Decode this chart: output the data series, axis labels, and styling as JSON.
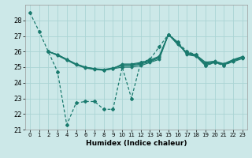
{
  "xlabel": "Humidex (Indice chaleur)",
  "background_color": "#cce8e8",
  "grid_color": "#aad4d4",
  "line_color": "#1a7a6e",
  "xlim": [
    -0.5,
    23.5
  ],
  "ylim": [
    21,
    29
  ],
  "yticks": [
    21,
    22,
    23,
    24,
    25,
    26,
    27,
    28
  ],
  "xticks": [
    0,
    1,
    2,
    3,
    4,
    5,
    6,
    7,
    8,
    9,
    10,
    11,
    12,
    13,
    14,
    15,
    16,
    17,
    18,
    19,
    20,
    21,
    22,
    23
  ],
  "line_jagged": [
    28.5,
    27.3,
    26.0,
    24.7,
    21.3,
    22.7,
    22.8,
    22.8,
    22.3,
    22.3,
    25.0,
    23.0,
    25.3,
    25.5,
    26.3,
    27.1,
    26.6,
    26.0,
    25.8,
    25.1,
    25.3,
    25.1,
    25.4,
    25.6
  ],
  "smooth_anchors_x": [
    2,
    3,
    4,
    5,
    6,
    7,
    8,
    9,
    10,
    11,
    12,
    13,
    14,
    15,
    16,
    17,
    18,
    19,
    20,
    21,
    22,
    23
  ],
  "smooth_lines": [
    [
      26.0,
      25.8,
      25.5,
      25.2,
      25.0,
      24.9,
      24.8,
      24.9,
      25.0,
      25.0,
      25.1,
      25.3,
      25.5,
      27.1,
      26.6,
      25.8,
      25.7,
      25.1,
      25.3,
      25.15,
      25.35,
      25.55
    ],
    [
      26.0,
      25.8,
      25.5,
      25.2,
      25.0,
      24.9,
      24.85,
      24.95,
      25.1,
      25.1,
      25.2,
      25.35,
      25.6,
      27.1,
      26.55,
      25.85,
      25.72,
      25.18,
      25.32,
      25.18,
      25.42,
      25.62
    ],
    [
      26.0,
      25.78,
      25.48,
      25.18,
      24.98,
      24.88,
      24.82,
      24.92,
      25.15,
      25.15,
      25.25,
      25.4,
      25.65,
      27.1,
      26.5,
      25.9,
      25.75,
      25.25,
      25.35,
      25.2,
      25.45,
      25.65
    ],
    [
      26.0,
      25.75,
      25.45,
      25.15,
      24.95,
      24.85,
      24.8,
      24.9,
      25.2,
      25.2,
      25.3,
      25.45,
      25.7,
      27.1,
      26.45,
      25.95,
      25.78,
      25.32,
      25.38,
      25.22,
      25.48,
      25.68
    ]
  ]
}
